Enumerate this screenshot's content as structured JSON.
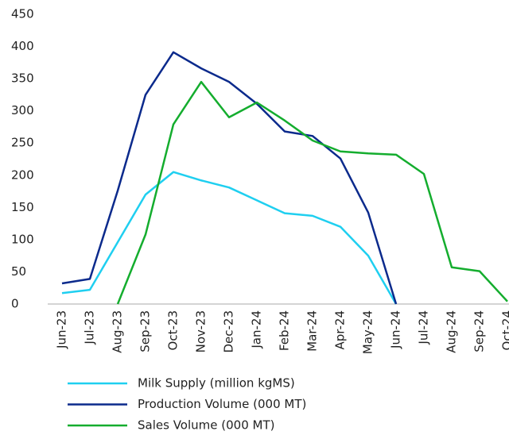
{
  "chart_data": {
    "type": "line",
    "categories": [
      "Jun-23",
      "Jul-23",
      "Aug-23",
      "Sep-23",
      "Oct-23",
      "Nov-23",
      "Dec-23",
      "Jan-24",
      "Feb-24",
      "Mar-24",
      "Apr-24",
      "May-24",
      "Jun-24",
      "Jul-24",
      "Aug-24",
      "Sep-24",
      "Oct-24"
    ],
    "series": [
      {
        "name": "Milk Supply (million kgMS)",
        "color": "#1fcff0",
        "values": [
          17,
          22,
          96,
          170,
          205,
          192,
          181,
          161,
          141,
          137,
          120,
          75,
          0,
          null,
          null,
          null,
          null
        ]
      },
      {
        "name": "Production Volume (000 MT)",
        "color": "#0b2a8c",
        "values": [
          32,
          39,
          176,
          325,
          391,
          366,
          345,
          311,
          268,
          261,
          226,
          142,
          0,
          null,
          null,
          null,
          null
        ]
      },
      {
        "name": "Sales Volume (000 MT)",
        "color": "#14ad2e",
        "values": [
          null,
          null,
          0,
          108,
          279,
          345,
          290,
          313,
          285,
          254,
          237,
          234,
          232,
          202,
          57,
          51,
          4
        ]
      }
    ],
    "ylim": [
      0,
      450
    ],
    "yticks": [
      0,
      50,
      100,
      150,
      200,
      250,
      300,
      350,
      400,
      450
    ],
    "grid": false
  }
}
